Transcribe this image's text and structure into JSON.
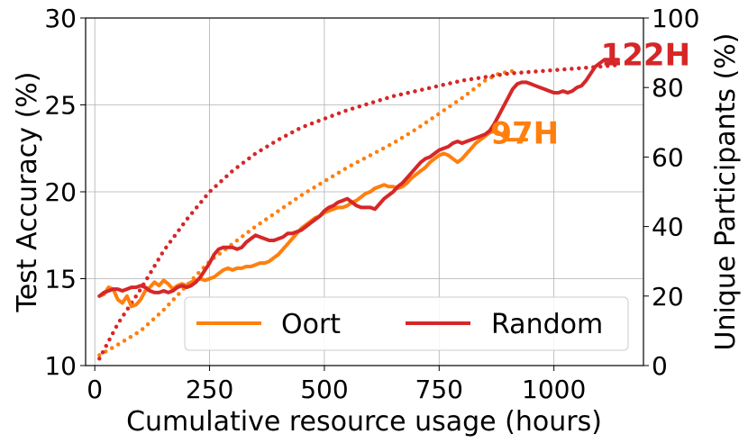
{
  "chart_data": {
    "type": "line",
    "xlabel": "Cumulative resource usage (hours)",
    "ylabel_left": "Test Accuracy (%)",
    "ylabel_right": "Unique Participants (%)",
    "xlim": [
      -20,
      1195
    ],
    "ylim_left": [
      10,
      30
    ],
    "ylim_right": [
      0,
      100
    ],
    "x_ticks": [
      0,
      250,
      500,
      750,
      1000
    ],
    "x_tick_labels": [
      "0",
      "250",
      "500",
      "750",
      "1000"
    ],
    "y_left_ticks": [
      10,
      15,
      20,
      25,
      30
    ],
    "y_left_tick_labels": [
      "10",
      "15",
      "20",
      "25",
      "30"
    ],
    "y_right_ticks": [
      0,
      20,
      40,
      60,
      80,
      100
    ],
    "y_right_tick_labels": [
      "0",
      "20",
      "40",
      "60",
      "80",
      "100"
    ],
    "grid": true,
    "legend_position": "bottom-right",
    "series": [
      {
        "name": "Oort",
        "axis": "left",
        "style": "solid",
        "color": "#ff7f0e",
        "points": [
          [
            10,
            14.0
          ],
          [
            20,
            14.1
          ],
          [
            30,
            14.5
          ],
          [
            40,
            14.4
          ],
          [
            50,
            13.8
          ],
          [
            60,
            13.6
          ],
          [
            70,
            14.0
          ],
          [
            80,
            13.4
          ],
          [
            90,
            13.5
          ],
          [
            100,
            13.8
          ],
          [
            110,
            14.3
          ],
          [
            120,
            14.5
          ],
          [
            130,
            14.8
          ],
          [
            140,
            14.6
          ],
          [
            150,
            14.9
          ],
          [
            160,
            14.7
          ],
          [
            170,
            14.4
          ],
          [
            180,
            14.6
          ],
          [
            190,
            14.7
          ],
          [
            200,
            14.6
          ],
          [
            210,
            14.8
          ],
          [
            220,
            14.9
          ],
          [
            230,
            15.0
          ],
          [
            240,
            14.9
          ],
          [
            250,
            15.0
          ],
          [
            260,
            15.1
          ],
          [
            270,
            15.3
          ],
          [
            280,
            15.5
          ],
          [
            290,
            15.6
          ],
          [
            300,
            15.5
          ],
          [
            310,
            15.6
          ],
          [
            320,
            15.6
          ],
          [
            330,
            15.7
          ],
          [
            340,
            15.7
          ],
          [
            350,
            15.8
          ],
          [
            360,
            15.9
          ],
          [
            370,
            15.9
          ],
          [
            380,
            16.0
          ],
          [
            390,
            16.2
          ],
          [
            400,
            16.4
          ],
          [
            410,
            16.7
          ],
          [
            420,
            17.0
          ],
          [
            430,
            17.3
          ],
          [
            440,
            17.6
          ],
          [
            450,
            17.9
          ],
          [
            460,
            18.1
          ],
          [
            470,
            18.3
          ],
          [
            480,
            18.5
          ],
          [
            490,
            18.6
          ],
          [
            500,
            18.8
          ],
          [
            510,
            18.9
          ],
          [
            520,
            19.0
          ],
          [
            530,
            19.1
          ],
          [
            540,
            19.1
          ],
          [
            550,
            19.2
          ],
          [
            560,
            19.4
          ],
          [
            570,
            19.5
          ],
          [
            580,
            19.7
          ],
          [
            590,
            19.9
          ],
          [
            600,
            20.0
          ],
          [
            610,
            20.2
          ],
          [
            620,
            20.3
          ],
          [
            630,
            20.4
          ],
          [
            640,
            20.3
          ],
          [
            650,
            20.3
          ],
          [
            660,
            20.2
          ],
          [
            670,
            20.3
          ],
          [
            680,
            20.5
          ],
          [
            690,
            20.8
          ],
          [
            700,
            21.0
          ],
          [
            710,
            21.2
          ],
          [
            720,
            21.4
          ],
          [
            730,
            21.7
          ],
          [
            740,
            21.9
          ],
          [
            750,
            22.1
          ],
          [
            760,
            22.2
          ],
          [
            770,
            22.1
          ],
          [
            780,
            21.9
          ],
          [
            790,
            21.7
          ],
          [
            800,
            21.9
          ],
          [
            810,
            22.2
          ],
          [
            820,
            22.5
          ],
          [
            830,
            22.8
          ],
          [
            840,
            23.0
          ],
          [
            850,
            23.2
          ],
          [
            860,
            23.4
          ],
          [
            870,
            23.5
          ],
          [
            880,
            23.4
          ],
          [
            890,
            23.2
          ],
          [
            900,
            23.0
          ],
          [
            910,
            23.0
          ],
          [
            920,
            23.0
          ],
          [
            930,
            23.0
          ],
          [
            940,
            23.0
          ]
        ]
      },
      {
        "name": "Random",
        "axis": "left",
        "style": "solid",
        "color": "#d62728",
        "points": [
          [
            10,
            14.0
          ],
          [
            20,
            14.2
          ],
          [
            30,
            14.3
          ],
          [
            40,
            14.4
          ],
          [
            50,
            14.4
          ],
          [
            60,
            14.3
          ],
          [
            70,
            14.4
          ],
          [
            80,
            14.5
          ],
          [
            90,
            14.5
          ],
          [
            100,
            14.6
          ],
          [
            110,
            14.5
          ],
          [
            120,
            14.3
          ],
          [
            130,
            14.2
          ],
          [
            140,
            14.2
          ],
          [
            150,
            14.3
          ],
          [
            160,
            14.2
          ],
          [
            170,
            14.3
          ],
          [
            180,
            14.5
          ],
          [
            190,
            14.6
          ],
          [
            200,
            14.5
          ],
          [
            210,
            14.6
          ],
          [
            220,
            14.8
          ],
          [
            230,
            15.1
          ],
          [
            240,
            15.5
          ],
          [
            250,
            15.9
          ],
          [
            260,
            16.4
          ],
          [
            270,
            16.7
          ],
          [
            280,
            16.8
          ],
          [
            290,
            16.8
          ],
          [
            300,
            16.8
          ],
          [
            310,
            16.7
          ],
          [
            320,
            16.8
          ],
          [
            330,
            17.1
          ],
          [
            340,
            17.3
          ],
          [
            350,
            17.5
          ],
          [
            360,
            17.4
          ],
          [
            370,
            17.3
          ],
          [
            380,
            17.2
          ],
          [
            390,
            17.2
          ],
          [
            400,
            17.3
          ],
          [
            410,
            17.4
          ],
          [
            420,
            17.6
          ],
          [
            430,
            17.6
          ],
          [
            440,
            17.7
          ],
          [
            450,
            17.8
          ],
          [
            460,
            18.0
          ],
          [
            470,
            18.2
          ],
          [
            480,
            18.4
          ],
          [
            490,
            18.6
          ],
          [
            500,
            18.9
          ],
          [
            510,
            19.1
          ],
          [
            520,
            19.2
          ],
          [
            530,
            19.4
          ],
          [
            540,
            19.5
          ],
          [
            550,
            19.6
          ],
          [
            560,
            19.4
          ],
          [
            570,
            19.2
          ],
          [
            580,
            19.1
          ],
          [
            590,
            19.1
          ],
          [
            600,
            19.1
          ],
          [
            610,
            19.0
          ],
          [
            620,
            19.3
          ],
          [
            630,
            19.6
          ],
          [
            640,
            19.8
          ],
          [
            650,
            20.0
          ],
          [
            660,
            20.3
          ],
          [
            670,
            20.5
          ],
          [
            680,
            20.8
          ],
          [
            690,
            21.1
          ],
          [
            700,
            21.4
          ],
          [
            710,
            21.7
          ],
          [
            720,
            21.9
          ],
          [
            730,
            22.0
          ],
          [
            740,
            22.2
          ],
          [
            750,
            22.4
          ],
          [
            760,
            22.5
          ],
          [
            770,
            22.6
          ],
          [
            780,
            22.8
          ],
          [
            790,
            22.9
          ],
          [
            800,
            22.8
          ],
          [
            810,
            22.9
          ],
          [
            820,
            23.0
          ],
          [
            830,
            23.1
          ],
          [
            840,
            23.2
          ],
          [
            850,
            23.3
          ],
          [
            860,
            23.5
          ],
          [
            870,
            23.9
          ],
          [
            880,
            24.4
          ],
          [
            890,
            24.9
          ],
          [
            900,
            25.4
          ],
          [
            910,
            25.9
          ],
          [
            920,
            26.2
          ],
          [
            930,
            26.3
          ],
          [
            940,
            26.3
          ],
          [
            950,
            26.2
          ],
          [
            960,
            26.1
          ],
          [
            970,
            26.0
          ],
          [
            980,
            25.9
          ],
          [
            990,
            25.8
          ],
          [
            1000,
            25.7
          ],
          [
            1010,
            25.7
          ],
          [
            1020,
            25.8
          ],
          [
            1030,
            25.7
          ],
          [
            1040,
            25.8
          ],
          [
            1050,
            26.0
          ],
          [
            1060,
            26.1
          ],
          [
            1070,
            26.4
          ],
          [
            1080,
            26.8
          ],
          [
            1090,
            27.2
          ],
          [
            1100,
            27.4
          ],
          [
            1110,
            27.6
          ],
          [
            1120,
            27.6
          ],
          [
            1130,
            27.6
          ],
          [
            1140,
            27.6
          ]
        ]
      },
      {
        "name": "Oort unique participants",
        "axis": "right",
        "style": "dotted",
        "color": "#ff7f0e",
        "points": [
          [
            10,
            3
          ],
          [
            50,
            6
          ],
          [
            100,
            10
          ],
          [
            150,
            16
          ],
          [
            200,
            23
          ],
          [
            250,
            30
          ],
          [
            300,
            35
          ],
          [
            350,
            40
          ],
          [
            400,
            44.5
          ],
          [
            450,
            49
          ],
          [
            500,
            53
          ],
          [
            550,
            57
          ],
          [
            600,
            60.5
          ],
          [
            650,
            64
          ],
          [
            700,
            68
          ],
          [
            750,
            72.5
          ],
          [
            800,
            77
          ],
          [
            850,
            82
          ],
          [
            880,
            84
          ],
          [
            920,
            85
          ]
        ]
      },
      {
        "name": "Random unique participants",
        "axis": "right",
        "style": "dotted",
        "color": "#d62728",
        "points": [
          [
            10,
            2
          ],
          [
            50,
            12
          ],
          [
            100,
            22
          ],
          [
            150,
            33
          ],
          [
            200,
            42
          ],
          [
            250,
            50
          ],
          [
            300,
            56
          ],
          [
            350,
            61
          ],
          [
            400,
            65
          ],
          [
            450,
            68.5
          ],
          [
            500,
            71
          ],
          [
            550,
            73.5
          ],
          [
            600,
            75.5
          ],
          [
            650,
            77.5
          ],
          [
            700,
            79
          ],
          [
            750,
            80.5
          ],
          [
            800,
            82
          ],
          [
            850,
            83
          ],
          [
            900,
            84
          ],
          [
            950,
            84.5
          ],
          [
            1000,
            85
          ],
          [
            1050,
            85.5
          ],
          [
            1100,
            86
          ],
          [
            1140,
            86.5
          ]
        ]
      }
    ],
    "annotations": [
      {
        "text": "97H",
        "color": "#ff7f0e",
        "x": 862,
        "y": 23.4
      },
      {
        "text": "122H",
        "color": "#d62728",
        "x": 1102,
        "y": 27.9
      }
    ],
    "legend": [
      {
        "label": "Oort",
        "color": "#ff7f0e"
      },
      {
        "label": "Random",
        "color": "#d62728"
      }
    ]
  }
}
